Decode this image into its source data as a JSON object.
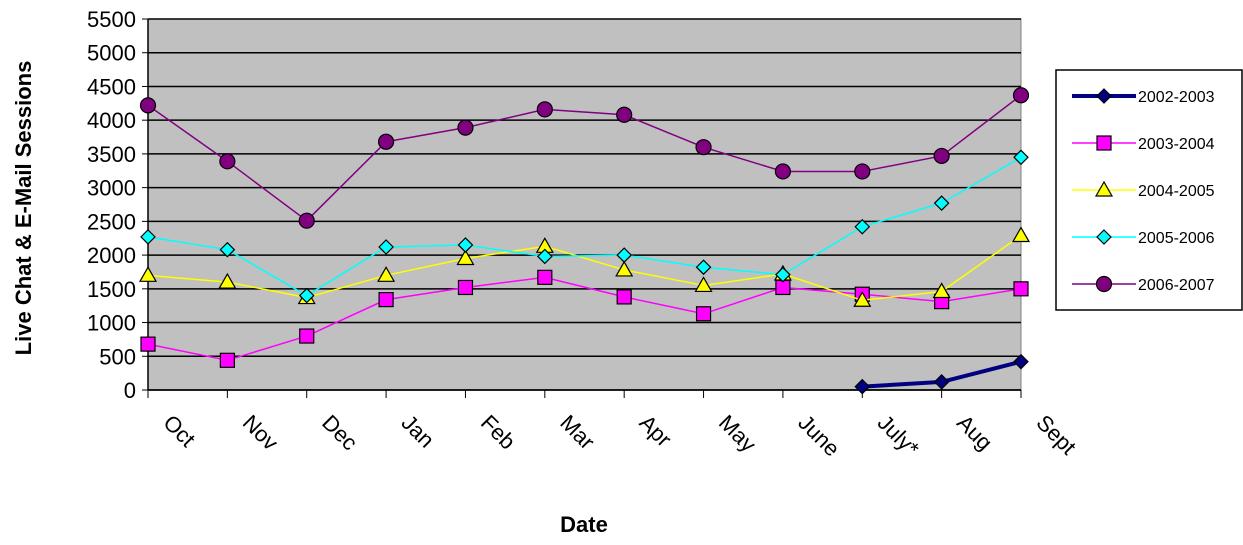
{
  "chart_data": {
    "type": "line",
    "title": "",
    "xlabel": "Date",
    "ylabel": "Live Chat & E-Mail Sessions",
    "ylim": [
      0,
      5500
    ],
    "yticks": [
      0,
      500,
      1000,
      1500,
      2000,
      2500,
      3000,
      3500,
      4000,
      4500,
      5000,
      5500
    ],
    "categories": [
      "Oct",
      "Nov",
      "Dec",
      "Jan",
      "Feb",
      "Mar",
      "Apr",
      "May",
      "June",
      "July*",
      "Aug",
      "Sept"
    ],
    "grid": "horizontal",
    "plot_background": "#c0c0c0",
    "legend_position": "right",
    "series": [
      {
        "name": "2002-2003",
        "color": "#000080",
        "marker": "diamond",
        "values": [
          null,
          null,
          null,
          null,
          null,
          null,
          null,
          null,
          null,
          50,
          120,
          420
        ]
      },
      {
        "name": "2003-2004",
        "color": "#ff00ff",
        "marker": "square",
        "values": [
          680,
          440,
          800,
          1340,
          1520,
          1670,
          1380,
          1130,
          1520,
          1420,
          1310,
          1500
        ]
      },
      {
        "name": "2004-2005",
        "color": "#ffff00",
        "marker": "triangle",
        "values": [
          1700,
          1600,
          1370,
          1700,
          1950,
          2130,
          1780,
          1550,
          1720,
          1330,
          1460,
          2290
        ]
      },
      {
        "name": "2005-2006",
        "color": "#00ffff",
        "marker": "diamond",
        "values": [
          2270,
          2080,
          1400,
          2120,
          2150,
          1980,
          2000,
          1820,
          1710,
          2420,
          2770,
          3450
        ]
      },
      {
        "name": "2006-2007",
        "color": "#800080",
        "marker": "circle",
        "values": [
          4220,
          3390,
          2510,
          3680,
          3890,
          4160,
          4080,
          3600,
          3240,
          3240,
          3470,
          4370
        ]
      }
    ]
  }
}
